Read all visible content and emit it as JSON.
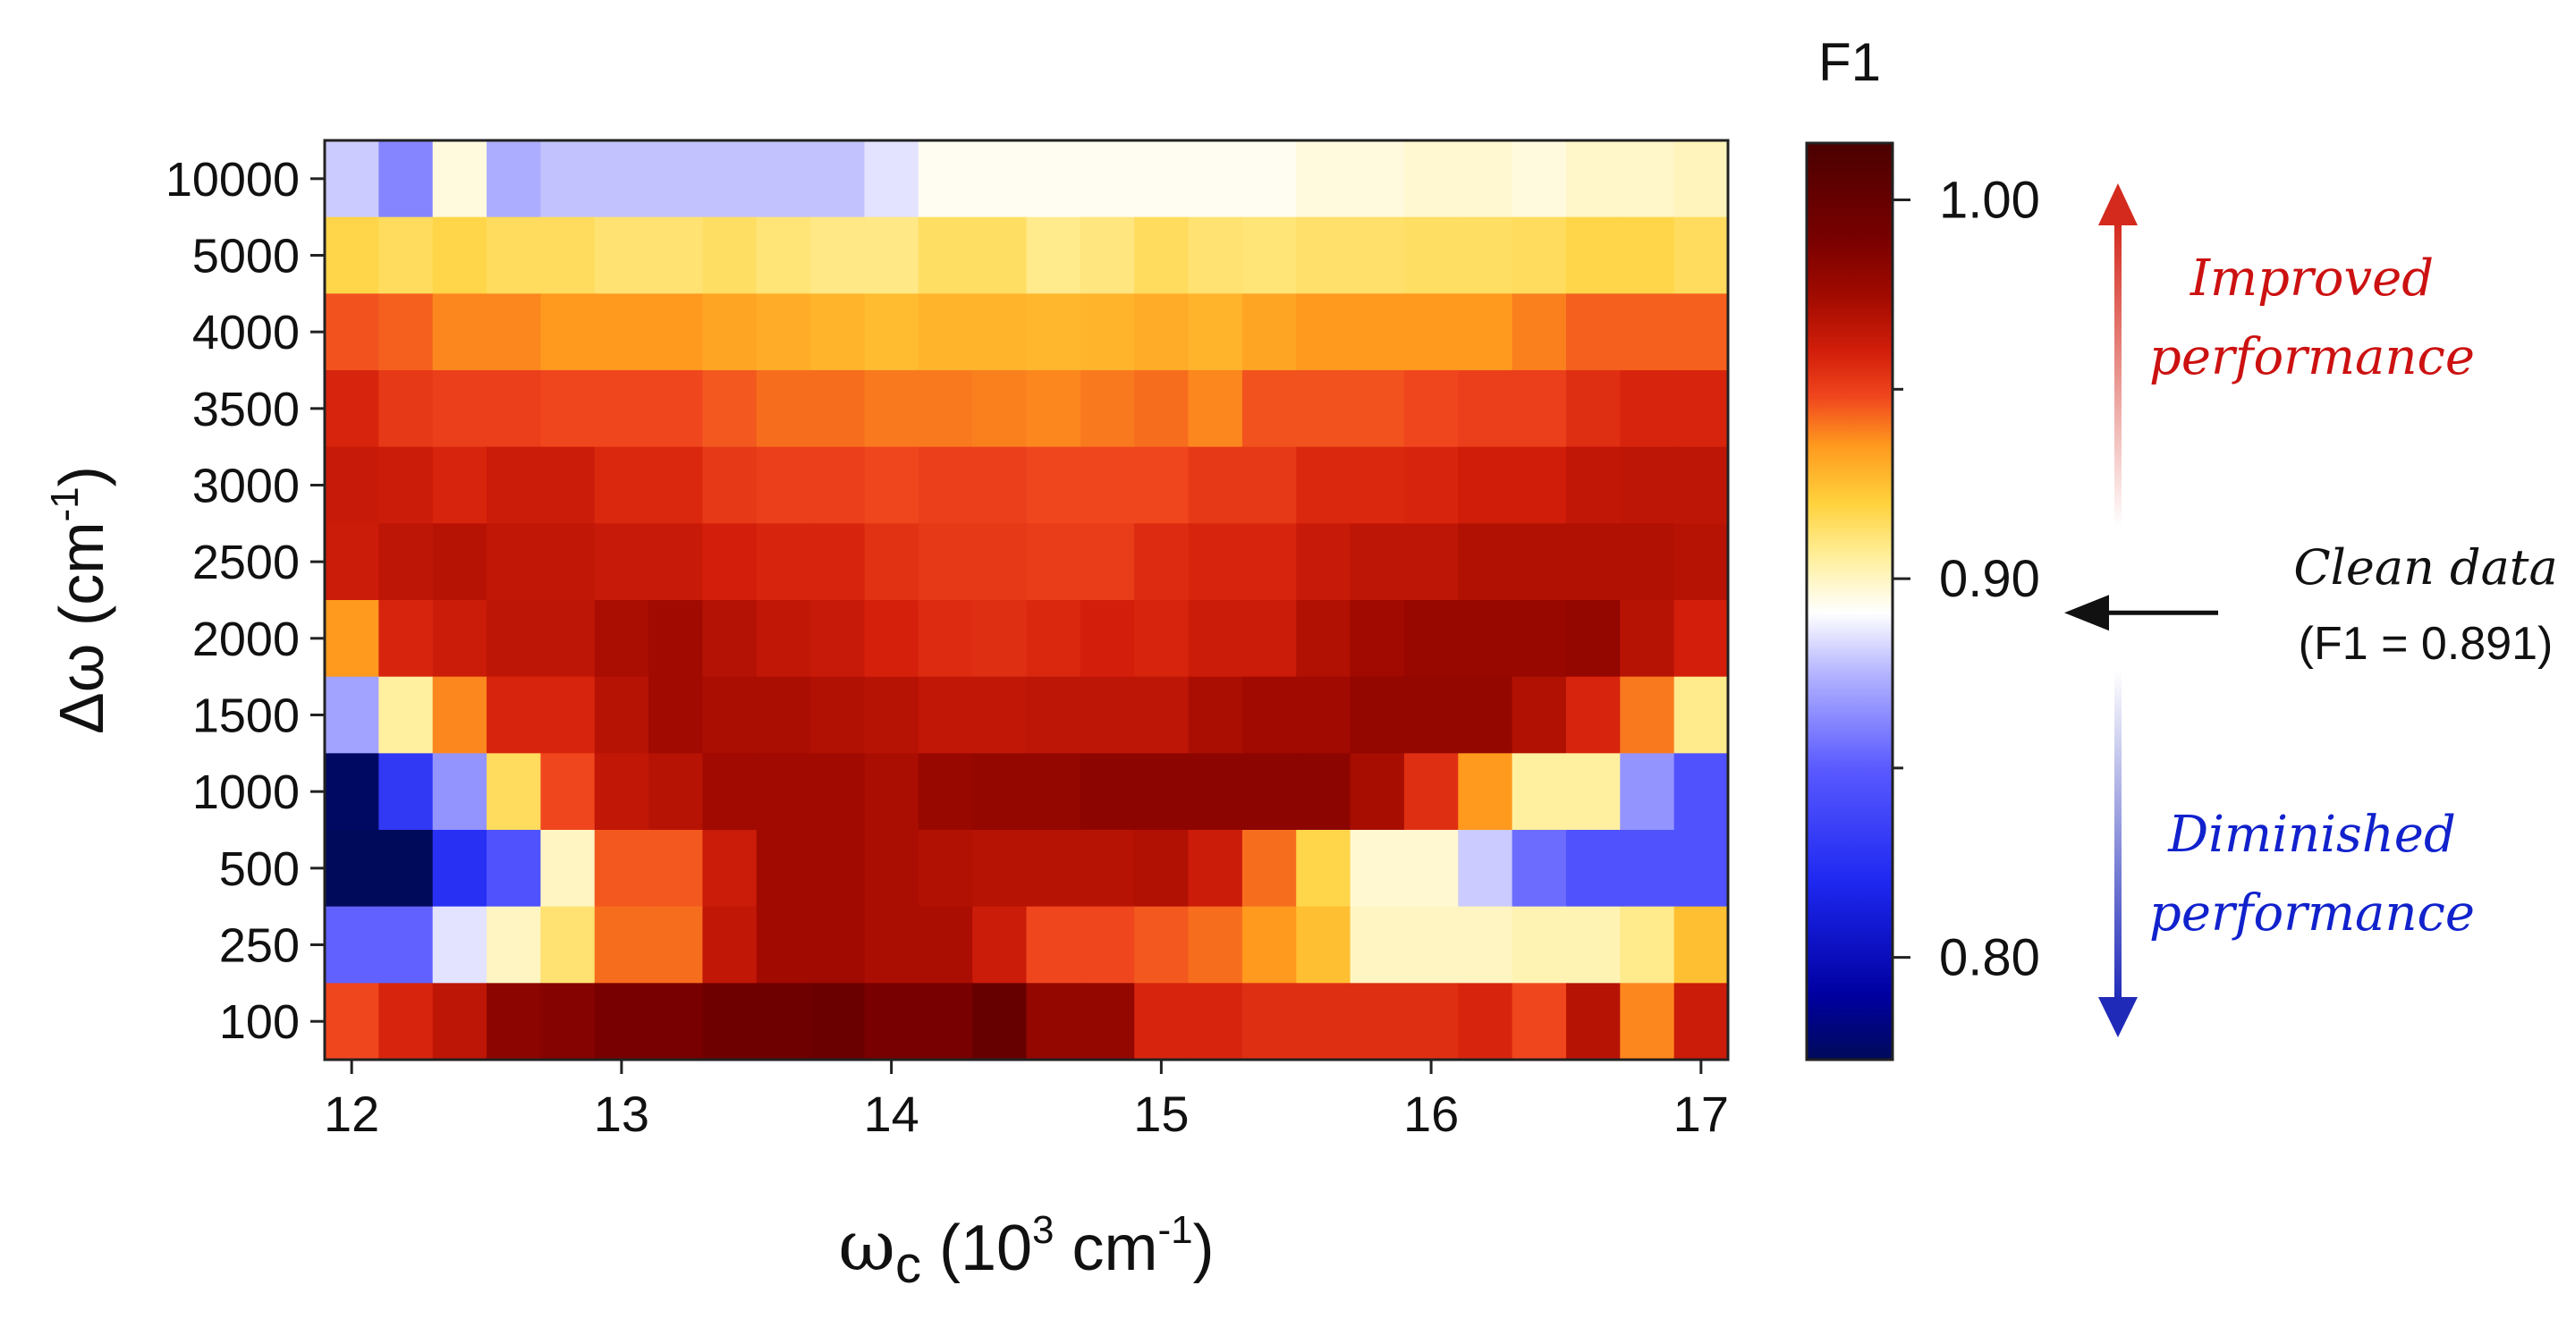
{
  "chart_data": {
    "type": "heatmap",
    "title": "",
    "xlabel": {
      "main": "ω",
      "sub": "c",
      "rest_open": " (10",
      "sup": "3",
      "rest_close": " cm",
      "sup2": "-1",
      "end": ")"
    },
    "ylabel": {
      "main": "Δω (cm",
      "sup": "-1",
      "end": ")"
    },
    "x_tick_labels": [
      "12",
      "13",
      "14",
      "15",
      "16",
      "17"
    ],
    "x_tick_values": [
      12,
      13,
      14,
      15,
      16,
      17
    ],
    "x_range": [
      11.9,
      17.1
    ],
    "x": [
      12.0,
      12.2,
      12.4,
      12.6,
      12.8,
      13.0,
      13.2,
      13.4,
      13.6,
      13.8,
      14.0,
      14.2,
      14.4,
      14.6,
      14.8,
      15.0,
      15.2,
      15.4,
      15.6,
      15.8,
      16.0,
      16.2,
      16.4,
      16.6,
      16.8,
      17.0
    ],
    "y_categories": [
      "10000",
      "5000",
      "4000",
      "3500",
      "3000",
      "2500",
      "2000",
      "1500",
      "1000",
      "500",
      "250",
      "100"
    ],
    "values": [
      [
        0.88,
        0.862,
        0.896,
        0.873,
        0.878,
        0.878,
        0.878,
        0.878,
        0.878,
        0.878,
        0.885,
        0.893,
        0.893,
        0.893,
        0.893,
        0.893,
        0.893,
        0.893,
        0.896,
        0.896,
        0.898,
        0.898,
        0.896,
        0.899,
        0.899,
        0.901
      ],
      [
        0.918,
        0.915,
        0.918,
        0.915,
        0.915,
        0.912,
        0.912,
        0.914,
        0.911,
        0.909,
        0.909,
        0.914,
        0.914,
        0.908,
        0.91,
        0.915,
        0.912,
        0.911,
        0.913,
        0.913,
        0.914,
        0.914,
        0.915,
        0.918,
        0.918,
        0.915
      ],
      [
        0.946,
        0.944,
        0.938,
        0.938,
        0.935,
        0.935,
        0.935,
        0.932,
        0.93,
        0.928,
        0.926,
        0.928,
        0.928,
        0.927,
        0.928,
        0.93,
        0.928,
        0.932,
        0.935,
        0.935,
        0.935,
        0.935,
        0.939,
        0.944,
        0.944,
        0.944
      ],
      [
        0.958,
        0.952,
        0.95,
        0.95,
        0.948,
        0.948,
        0.948,
        0.945,
        0.942,
        0.942,
        0.94,
        0.94,
        0.939,
        0.938,
        0.94,
        0.942,
        0.938,
        0.946,
        0.946,
        0.946,
        0.948,
        0.95,
        0.95,
        0.955,
        0.958,
        0.958
      ],
      [
        0.963,
        0.962,
        0.958,
        0.962,
        0.962,
        0.957,
        0.957,
        0.952,
        0.95,
        0.95,
        0.948,
        0.95,
        0.95,
        0.948,
        0.948,
        0.948,
        0.952,
        0.952,
        0.957,
        0.957,
        0.958,
        0.961,
        0.961,
        0.965,
        0.966,
        0.966
      ],
      [
        0.962,
        0.966,
        0.968,
        0.965,
        0.965,
        0.963,
        0.963,
        0.96,
        0.958,
        0.958,
        0.954,
        0.952,
        0.952,
        0.951,
        0.951,
        0.956,
        0.958,
        0.958,
        0.963,
        0.966,
        0.966,
        0.97,
        0.97,
        0.97,
        0.97,
        0.968
      ],
      [
        0.935,
        0.958,
        0.962,
        0.966,
        0.966,
        0.972,
        0.975,
        0.969,
        0.965,
        0.963,
        0.959,
        0.956,
        0.955,
        0.957,
        0.96,
        0.958,
        0.962,
        0.962,
        0.97,
        0.975,
        0.978,
        0.978,
        0.978,
        0.98,
        0.968,
        0.96
      ],
      [
        0.87,
        0.905,
        0.938,
        0.958,
        0.958,
        0.968,
        0.975,
        0.972,
        0.972,
        0.97,
        0.968,
        0.965,
        0.965,
        0.966,
        0.966,
        0.966,
        0.972,
        0.975,
        0.975,
        0.98,
        0.98,
        0.98,
        0.97,
        0.958,
        0.94,
        0.908
      ],
      [
        0.775,
        0.83,
        0.866,
        0.915,
        0.948,
        0.965,
        0.968,
        0.975,
        0.975,
        0.975,
        0.972,
        0.978,
        0.98,
        0.98,
        0.982,
        0.982,
        0.982,
        0.982,
        0.982,
        0.973,
        0.955,
        0.935,
        0.905,
        0.905,
        0.866,
        0.845
      ],
      [
        0.77,
        0.77,
        0.825,
        0.845,
        0.9,
        0.945,
        0.945,
        0.962,
        0.975,
        0.975,
        0.972,
        0.97,
        0.968,
        0.968,
        0.968,
        0.97,
        0.962,
        0.942,
        0.918,
        0.898,
        0.898,
        0.88,
        0.855,
        0.845,
        0.845,
        0.845
      ],
      [
        0.852,
        0.852,
        0.885,
        0.9,
        0.912,
        0.942,
        0.942,
        0.965,
        0.975,
        0.975,
        0.972,
        0.972,
        0.962,
        0.948,
        0.948,
        0.945,
        0.942,
        0.935,
        0.925,
        0.9,
        0.9,
        0.9,
        0.902,
        0.902,
        0.908,
        0.925
      ],
      [
        0.948,
        0.958,
        0.966,
        0.982,
        0.985,
        0.99,
        0.99,
        0.995,
        0.995,
        0.997,
        0.99,
        0.99,
        1.0,
        0.98,
        0.98,
        0.958,
        0.958,
        0.955,
        0.955,
        0.955,
        0.955,
        0.958,
        0.948,
        0.968,
        0.938,
        0.962
      ]
    ],
    "colorbar": {
      "label": "F1",
      "range": [
        0.773,
        1.015
      ],
      "tick_values": [
        1.0,
        0.9,
        0.8
      ],
      "tick_labels": [
        "1.00",
        "0.90",
        "0.80"
      ],
      "minor_tick_values": [
        0.95,
        0.85
      ],
      "colormap": [
        [
          0.773,
          "#000a5a"
        ],
        [
          0.79,
          "#0000a0"
        ],
        [
          0.82,
          "#1e28f0"
        ],
        [
          0.85,
          "#5a5aff"
        ],
        [
          0.875,
          "#b4b4ff"
        ],
        [
          0.891,
          "#ffffff"
        ],
        [
          0.905,
          "#fff0a0"
        ],
        [
          0.92,
          "#ffd23c"
        ],
        [
          0.935,
          "#ff9a1e"
        ],
        [
          0.948,
          "#f0461e"
        ],
        [
          0.96,
          "#d21e0a"
        ],
        [
          0.975,
          "#a00a00"
        ],
        [
          0.99,
          "#780000"
        ],
        [
          1.015,
          "#4b0000"
        ]
      ]
    },
    "annotations": {
      "improved": [
        "Improved",
        "performance"
      ],
      "improved_color": "#cc1111",
      "diminished": [
        "Diminished",
        "performance"
      ],
      "diminished_color": "#1122cc",
      "clean": [
        "Clean data",
        "(F1 = 0.891)"
      ],
      "clean_reference_value": 0.891
    }
  }
}
